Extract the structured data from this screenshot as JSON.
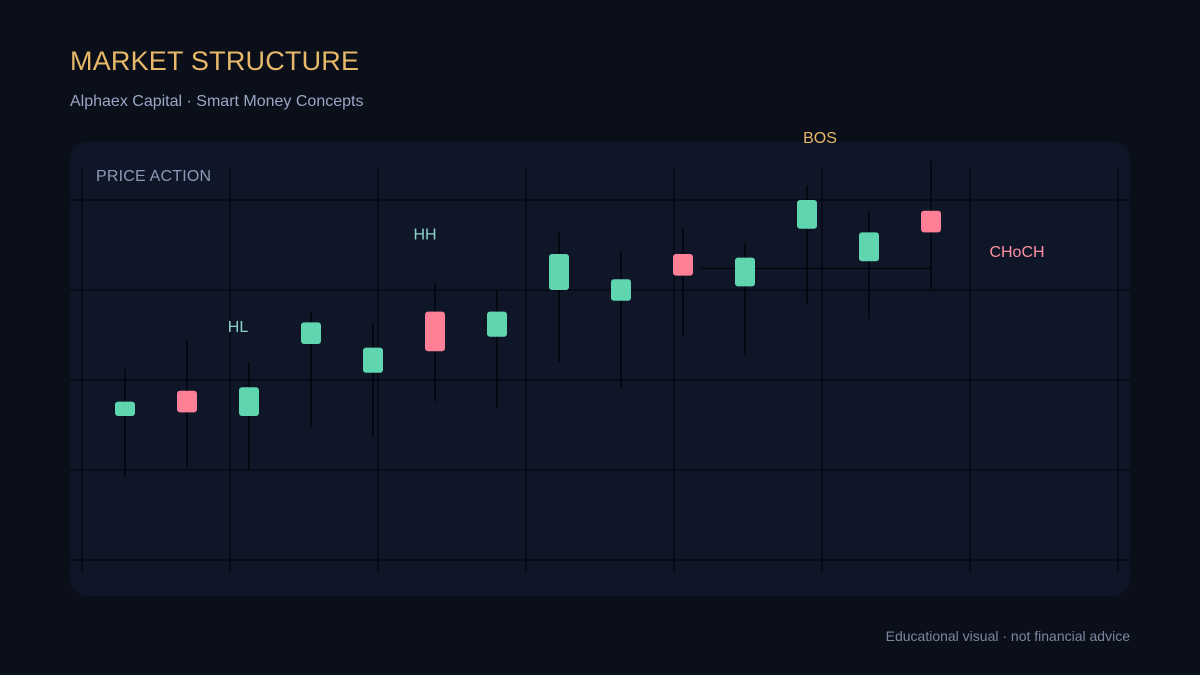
{
  "header": {
    "title": "MARKET STRUCTURE",
    "subtitle": "Alphaex Capital · Smart Money Concepts"
  },
  "panel": {
    "label": "PRICE ACTION"
  },
  "footer": {
    "note": "Educational visual · not financial advice"
  },
  "colors": {
    "bullish": "#5fd6b0",
    "bearish": "#ff8096",
    "gold": "#e8b86a",
    "teal_label": "#8fd3c8",
    "pink_label": "#ff8fa6"
  },
  "chart_data": {
    "type": "candlestick",
    "title": "PRICE ACTION",
    "grid": true,
    "ylim": [
      0,
      100
    ],
    "candles": [
      {
        "open": 40,
        "close": 44,
        "high": 53,
        "low": 23,
        "dir": "bull"
      },
      {
        "open": 47,
        "close": 41,
        "high": 61,
        "low": 26,
        "dir": "bear"
      },
      {
        "open": 40,
        "close": 48,
        "high": 55,
        "low": 25,
        "dir": "bull"
      },
      {
        "open": 60,
        "close": 66,
        "high": 69,
        "low": 37,
        "dir": "bull"
      },
      {
        "open": 52,
        "close": 59,
        "high": 66,
        "low": 34,
        "dir": "bull"
      },
      {
        "open": 69,
        "close": 58,
        "high": 77,
        "low": 44,
        "dir": "bear"
      },
      {
        "open": 62,
        "close": 69,
        "high": 75,
        "low": 42,
        "dir": "bull"
      },
      {
        "open": 75,
        "close": 85,
        "high": 91,
        "low": 55,
        "dir": "bull"
      },
      {
        "open": 72,
        "close": 78,
        "high": 86,
        "low": 48,
        "dir": "bull"
      },
      {
        "open": 85,
        "close": 79,
        "high": 92,
        "low": 62,
        "dir": "bear"
      },
      {
        "open": 76,
        "close": 84,
        "high": 88,
        "low": 57,
        "dir": "bull"
      },
      {
        "open": 92,
        "close": 100,
        "high": 104,
        "low": 71,
        "dir": "bull"
      },
      {
        "open": 83,
        "close": 91,
        "high": 97,
        "low": 67,
        "dir": "bull"
      },
      {
        "open": 97,
        "close": 91,
        "high": 111,
        "low": 75,
        "dir": "bear"
      }
    ],
    "annotations": [
      {
        "text": "HL",
        "candle": 2,
        "color": "teal_label"
      },
      {
        "text": "HH",
        "candle": 5,
        "color": "teal_label"
      },
      {
        "text": "BOS",
        "candle": 11,
        "color": "gold"
      },
      {
        "text": "CHoCH",
        "candle": 13,
        "color": "pink_label"
      }
    ],
    "levels": [
      {
        "name": "structure-level",
        "y": 81,
        "from_candle": 9,
        "to_candle": 13
      }
    ]
  }
}
